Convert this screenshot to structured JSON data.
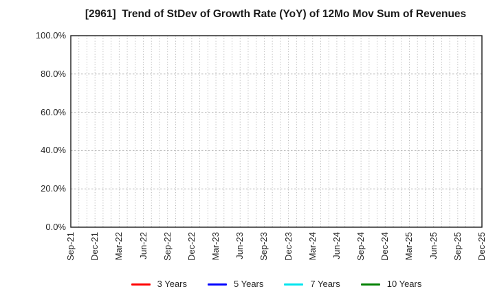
{
  "chart_data": {
    "type": "line",
    "title": "[2961]  Trend of StDev of Growth Rate (YoY) of 12Mo Mov Sum of Revenues",
    "xlabel": "",
    "ylabel": "",
    "ylim": [
      0,
      100
    ],
    "y_tick_labels": [
      "0.0%",
      "20.0%",
      "40.0%",
      "60.0%",
      "80.0%",
      "100.0%"
    ],
    "x_tick_labels": [
      "Sep-21",
      "Dec-21",
      "Mar-22",
      "Jun-22",
      "Sep-22",
      "Dec-22",
      "Mar-23",
      "Jun-23",
      "Sep-23",
      "Dec-23",
      "Mar-24",
      "Jun-24",
      "Sep-24",
      "Dec-24",
      "Mar-25",
      "Jun-25",
      "Sep-25",
      "Dec-25"
    ],
    "x_minor_gridlines_per_tick": 3,
    "grid": "dotted",
    "legend_position": "bottom",
    "series": [
      {
        "name": "3 Years",
        "color": "#ff0000",
        "values": []
      },
      {
        "name": "5 Years",
        "color": "#0000ff",
        "values": []
      },
      {
        "name": "7 Years",
        "color": "#00e5ee",
        "values": []
      },
      {
        "name": "10 Years",
        "color": "#008000",
        "values": []
      }
    ]
  },
  "colors": {
    "background": "#ffffff",
    "grid": "#b0b0b0",
    "axis_border": "#1a1a1a",
    "tick_text": "#262626",
    "title_text": "#1a1a1a"
  }
}
